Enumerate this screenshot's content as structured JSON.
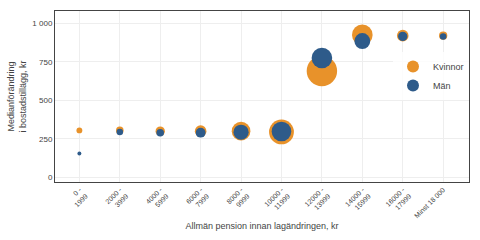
{
  "chart_data": {
    "type": "scatter",
    "marker": "circle",
    "categories": [
      "0 -\n1999",
      "2000 -\n3999",
      "4000 -\n5999",
      "6000 -\n7999",
      "8000 -\n9999",
      "10000 -\n11999",
      "12000 -\n13999",
      "14000 -\n15999",
      "16000 -\n17999",
      "Minst 18 000"
    ],
    "series": [
      {
        "name": "Kvinnor",
        "color": "#E8922A",
        "values": [
          305,
          305,
          300,
          300,
          300,
          295,
          690,
          925,
          920,
          920
        ],
        "size": [
          18,
          30,
          45,
          70,
          180,
          320,
          480,
          220,
          70,
          35
        ]
      },
      {
        "name": "Män",
        "color": "#2E5B8A",
        "values": [
          155,
          295,
          290,
          290,
          293,
          298,
          775,
          885,
          915,
          915
        ],
        "size": [
          8,
          22,
          30,
          50,
          120,
          200,
          220,
          130,
          45,
          22
        ]
      }
    ],
    "xlabel": "Allmän pension innan lagändringen, kr",
    "ylabel": "Medianförändring\ni bostadstillägg, kr",
    "ylim": [
      -30,
      1080
    ],
    "yticks": [
      0,
      250,
      500,
      750,
      {
        "value": 1000,
        "label": "1 000"
      }
    ],
    "grid": true,
    "legend": "right"
  }
}
